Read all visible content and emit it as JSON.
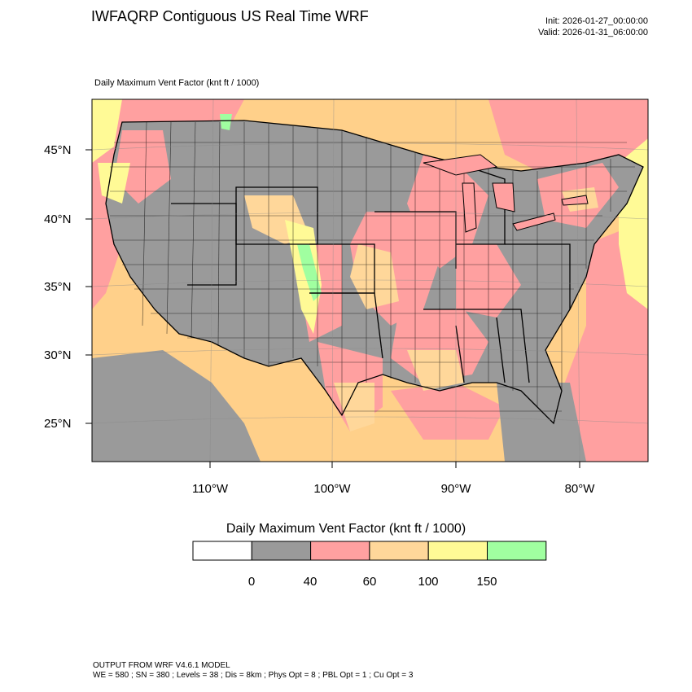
{
  "header": {
    "title": "IWFAQRP Contiguous US Real Time WRF",
    "init": "Init: 2026-01-27_00:00:00",
    "valid": "Valid: 2026-01-31_06:00:00",
    "subtitle": "Daily Maximum Vent Factor   (knt ft / 1000)"
  },
  "map": {
    "latitude_labels": [
      "45°N",
      "40°N",
      "35°N",
      "30°N",
      "25°N"
    ],
    "longitude_labels": [
      "110°W",
      "100°W",
      "90°W",
      "80°W"
    ],
    "colors": {
      "ocean_default": "#ffd08a",
      "class_0_40": "#9a9a9a",
      "class_40_60": "#ffa0a0",
      "class_60_100": "#ffd79a",
      "class_100_150": "#fffa96",
      "class_150_plus": "#a0ffa0",
      "boundaries": "#000000"
    }
  },
  "colorbar": {
    "title": "Daily Maximum Vent Factor  (knt ft / 1000)",
    "ticks": [
      "0",
      "40",
      "60",
      "100",
      "150"
    ],
    "colors": [
      "#ffffff",
      "#9a9a9a",
      "#ffa0a0",
      "#ffd79a",
      "#fffa96",
      "#a0ffa0"
    ]
  },
  "footer": {
    "line1": "OUTPUT FROM WRF V4.6.1 MODEL",
    "line2": "WE = 580 ; SN = 380 ; Levels = 38 ; Dis = 8km ; Phys Opt = 8 ; PBL Opt = 1 ; Cu Opt = 3"
  }
}
